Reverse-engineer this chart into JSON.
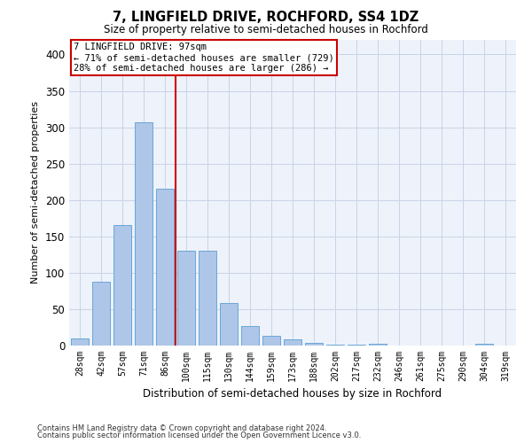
{
  "title": "7, LINGFIELD DRIVE, ROCHFORD, SS4 1DZ",
  "subtitle": "Size of property relative to semi-detached houses in Rochford",
  "xlabel": "Distribution of semi-detached houses by size in Rochford",
  "ylabel": "Number of semi-detached properties",
  "footer_line1": "Contains HM Land Registry data © Crown copyright and database right 2024.",
  "footer_line2": "Contains public sector information licensed under the Open Government Licence v3.0.",
  "categories": [
    "28sqm",
    "42sqm",
    "57sqm",
    "71sqm",
    "86sqm",
    "100sqm",
    "115sqm",
    "130sqm",
    "144sqm",
    "159sqm",
    "173sqm",
    "188sqm",
    "202sqm",
    "217sqm",
    "232sqm",
    "246sqm",
    "261sqm",
    "275sqm",
    "290sqm",
    "304sqm",
    "319sqm"
  ],
  "values": [
    10,
    88,
    165,
    307,
    215,
    130,
    130,
    58,
    27,
    14,
    8,
    4,
    1,
    1,
    3,
    0,
    0,
    0,
    0,
    3,
    0
  ],
  "bar_color": "#aec6e8",
  "bar_edge_color": "#5a9fd4",
  "grid_color": "#c8d4e8",
  "background_color": "#eef2fa",
  "vline_x": 4.5,
  "vline_color": "#cc0000",
  "annotation_line1": "7 LINGFIELD DRIVE: 97sqm",
  "annotation_line2": "← 71% of semi-detached houses are smaller (729)",
  "annotation_line3": "28% of semi-detached houses are larger (286) →",
  "annotation_box_color": "#ffffff",
  "annotation_box_edge": "#cc0000",
  "ylim": [
    0,
    420
  ],
  "yticks": [
    0,
    50,
    100,
    150,
    200,
    250,
    300,
    350,
    400
  ]
}
